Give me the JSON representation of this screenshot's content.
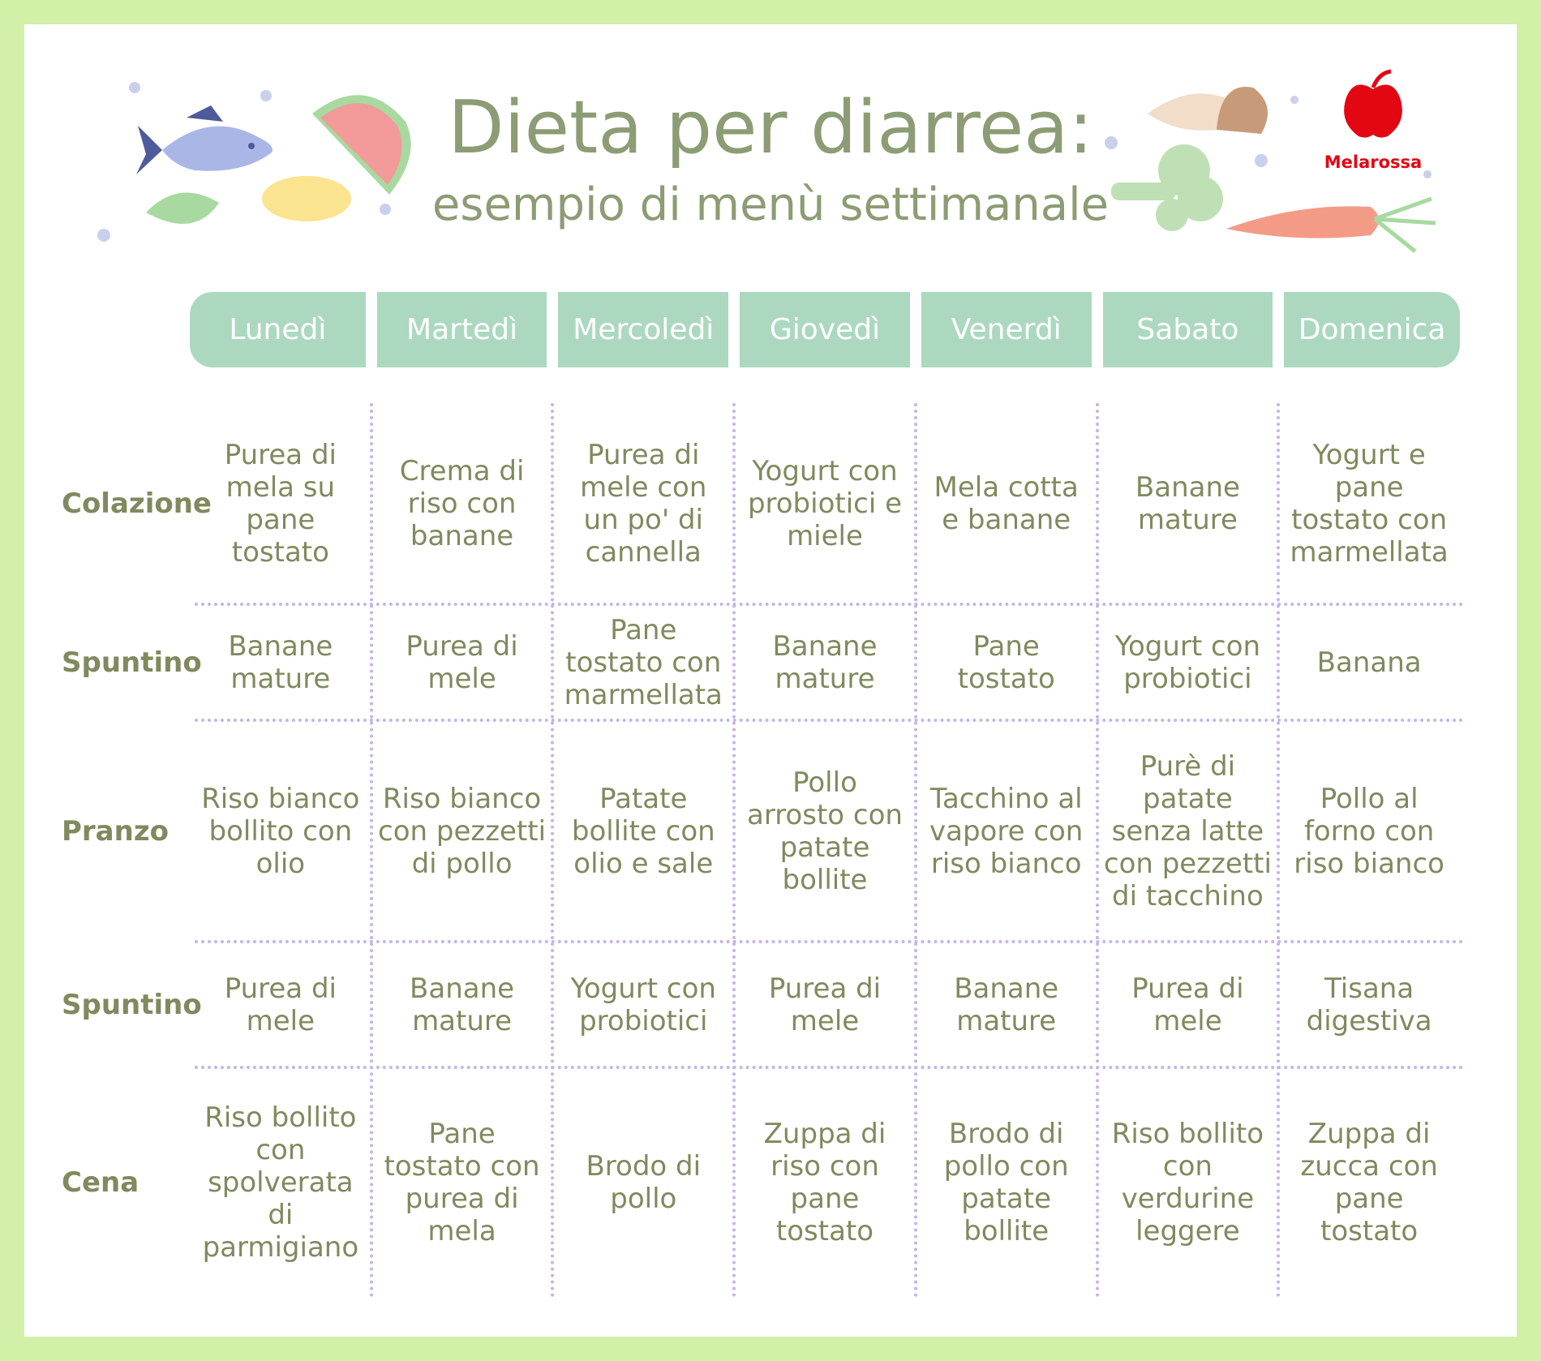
{
  "header": {
    "title": "Dieta per diarrea:",
    "subtitle": "esempio di menù settimanale",
    "logo": "Melarossa"
  },
  "table": {
    "days": [
      "Lunedì",
      "Martedì",
      "Mercoledì",
      "Giovedì",
      "Venerdì",
      "Sabato",
      "Domenica"
    ],
    "rows": [
      {
        "meal": "Colazione",
        "cells": [
          "Purea di mela su pane tostato",
          "Crema di riso con banane",
          "Purea di mele con un po' di cannella",
          "Yogurt con probiotici e miele",
          "Mela cotta e banane",
          "Banane mature",
          "Yogurt e pane tostato con marmellata"
        ]
      },
      {
        "meal": "Spuntino",
        "cells": [
          "Banane mature",
          "Purea di mele",
          "Pane tostato con marmellata",
          "Banane mature",
          "Pane tostato",
          "Yogurt con probiotici",
          "Banana"
        ]
      },
      {
        "meal": "Pranzo",
        "cells": [
          "Riso bianco bollito con olio",
          "Riso bianco con pezzetti di pollo",
          "Patate bollite con olio e sale",
          "Pollo arrosto con patate bollite",
          "Tacchino al vapore con riso bianco",
          "Purè di patate senza latte con pezzetti di tacchino",
          "Pollo al forno con riso bianco"
        ]
      },
      {
        "meal": "Spuntino",
        "cells": [
          "Purea di mele",
          "Banane mature",
          "Yogurt con probiotici",
          "Purea di mele",
          "Banane mature",
          "Purea di mele",
          "Tisana digestiva"
        ]
      },
      {
        "meal": "Cena",
        "cells": [
          "Riso bollito con spolverata di parmigiano",
          "Pane tostato con purea di mela",
          "Brodo di pollo",
          "Zuppa di riso con pane tostato",
          "Brodo di pollo con patate bollite",
          "Riso bollito con verdurine leggere",
          "Zuppa di zucca con pane tostato"
        ]
      }
    ]
  }
}
